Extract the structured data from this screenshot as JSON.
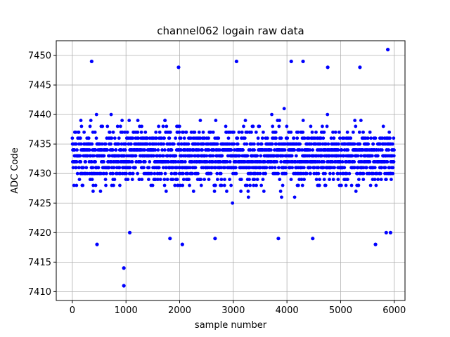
{
  "chart_data": {
    "type": "scatter",
    "title": "channel062 logain raw data",
    "xlabel": "sample number",
    "ylabel": "ADC Code",
    "xlim": [
      -300,
      6200
    ],
    "ylim": [
      7408.5,
      7452.5
    ],
    "xticks": [
      0,
      1000,
      2000,
      3000,
      4000,
      5000,
      6000
    ],
    "yticks": [
      7410,
      7415,
      7420,
      7425,
      7430,
      7435,
      7440,
      7445,
      7450
    ],
    "grid": true,
    "marker_color": "#0000ff",
    "sample_count": 6000,
    "y_range_observed": [
      7411,
      7451
    ],
    "dense_band": [
      7425,
      7441
    ],
    "outliers": [
      {
        "x": 960,
        "y": 7411
      },
      {
        "x": 960,
        "y": 7414
      },
      {
        "x": 360,
        "y": 7449
      },
      {
        "x": 1980,
        "y": 7448
      },
      {
        "x": 3060,
        "y": 7449
      },
      {
        "x": 4080,
        "y": 7449
      },
      {
        "x": 4300,
        "y": 7449
      },
      {
        "x": 4760,
        "y": 7448
      },
      {
        "x": 5360,
        "y": 7448
      },
      {
        "x": 5880,
        "y": 7451
      },
      {
        "x": 2050,
        "y": 7418
      },
      {
        "x": 460,
        "y": 7418
      },
      {
        "x": 3840,
        "y": 7419
      },
      {
        "x": 4480,
        "y": 7419
      },
      {
        "x": 5650,
        "y": 7418
      },
      {
        "x": 2660,
        "y": 7419
      },
      {
        "x": 1820,
        "y": 7419
      },
      {
        "x": 5850,
        "y": 7420
      },
      {
        "x": 5930,
        "y": 7420
      },
      {
        "x": 1070,
        "y": 7420
      }
    ]
  }
}
